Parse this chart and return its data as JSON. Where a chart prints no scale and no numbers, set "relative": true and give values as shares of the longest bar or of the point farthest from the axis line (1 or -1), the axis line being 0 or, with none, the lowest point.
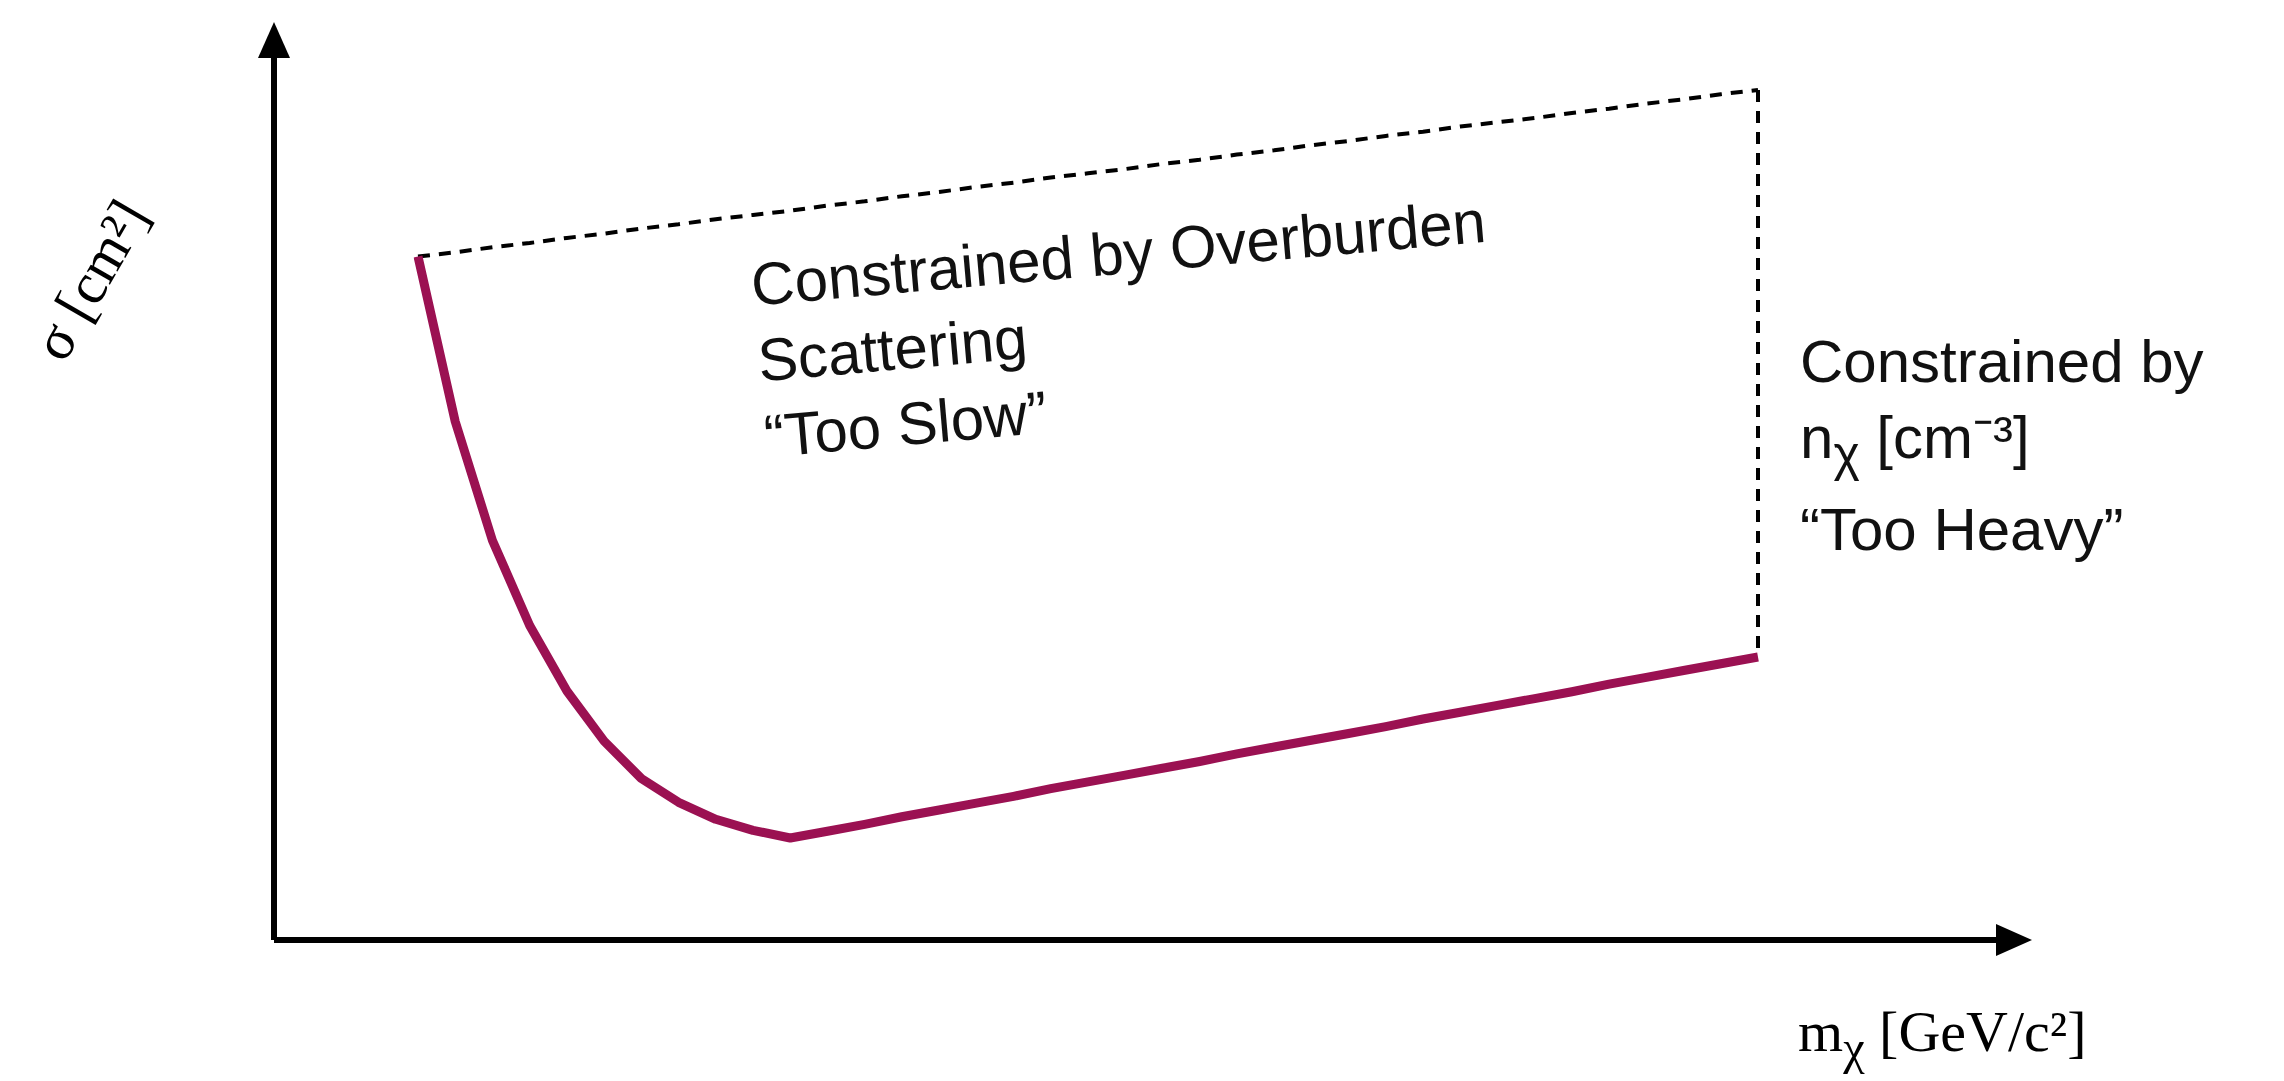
{
  "chart_data": {
    "type": "line",
    "relative": true,
    "xlabel": "m$_{χ}$ [GeV/c²]",
    "ylabel": "σ [cm²]",
    "annotations": [
      "Constrained by Overburden\nScattering\n“Too Slow”",
      "Constrained by\nn$_{χ}$ [cm⁻³]\n“Too Heavy”"
    ],
    "categories": [
      null,
      null,
      null,
      null,
      null,
      null,
      null,
      null,
      null,
      null,
      null,
      null,
      null,
      null,
      null,
      null,
      null,
      null,
      null,
      null,
      null,
      null,
      null,
      null,
      null,
      null,
      null,
      null,
      null,
      null,
      null,
      null,
      null,
      null,
      null,
      null,
      null
    ],
    "series": [
      {
        "color": "#9b1152",
        "line_style": "solid",
        "values": [
          0.804,
          0.61,
          0.47,
          0.37,
          0.293,
          0.234,
          0.19,
          0.162,
          0.142,
          0.129,
          0.12,
          0.128,
          0.136,
          0.145,
          0.153,
          0.161,
          0.169,
          0.178,
          0.186,
          0.194,
          0.202,
          0.21,
          0.219,
          0.227,
          0.235,
          0.243,
          0.251,
          0.26,
          0.268,
          0.276,
          0.284,
          0.292,
          0.301,
          0.309,
          0.317,
          0.325,
          0.333
        ]
      },
      {
        "color": "#000000",
        "line_style": "dashed",
        "values": [
          0.804,
          0.809,
          0.815,
          0.82,
          0.826,
          0.831,
          0.837,
          0.842,
          0.848,
          0.853,
          0.858,
          0.864,
          0.869,
          0.875,
          0.88,
          0.886,
          0.891,
          0.897,
          0.902,
          0.907,
          0.913,
          0.918,
          0.924,
          0.929,
          0.935,
          0.94,
          0.946,
          0.951,
          0.957,
          0.962,
          0.967,
          0.973,
          0.978,
          0.984,
          0.989,
          0.995,
          1.0
        ]
      }
    ],
    "marker": "none",
    "legend": false
  }
}
